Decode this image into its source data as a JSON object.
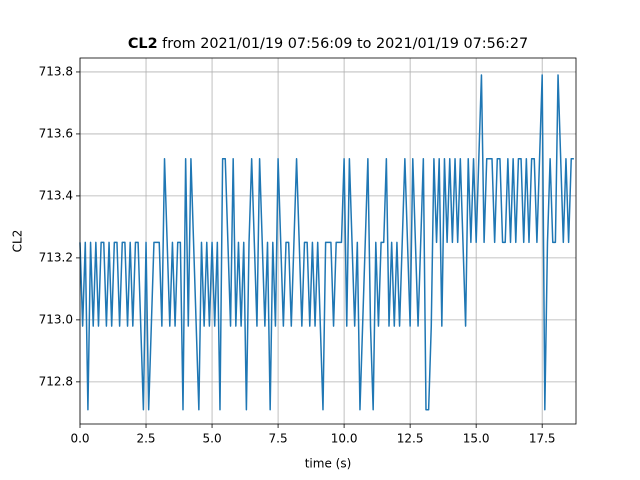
{
  "chart_data": {
    "type": "line",
    "title": {
      "bold": "CL2",
      "text": "from 2021/01/19 07:56:09 to 2021/01/19 07:56:27"
    },
    "xlabel": "time (s)",
    "ylabel": "CL2",
    "color": "#1f77b4",
    "grid": true,
    "xlim": [
      0,
      18.78
    ],
    "ylim": [
      712.664,
      713.845
    ],
    "xticks": [
      {
        "value": 0,
        "label": "0.0"
      },
      2.5,
      {
        "value": 5,
        "label": "5.0"
      },
      7.5,
      {
        "value": 10,
        "label": "10.0"
      },
      12.5,
      {
        "value": 15,
        "label": "15.0"
      },
      17.5
    ],
    "yticks": [
      712.8,
      {
        "value": 713,
        "label": "713.0"
      },
      713.2,
      713.4,
      713.6,
      713.8
    ],
    "x": [
      0.0,
      0.1,
      0.2,
      0.3,
      0.4,
      0.5,
      0.6,
      0.7,
      0.8,
      0.9,
      1.0,
      1.1,
      1.2,
      1.3,
      1.4,
      1.5,
      1.6,
      1.7,
      1.8,
      1.9,
      2.0,
      2.1,
      2.2,
      2.3,
      2.4,
      2.5,
      2.6,
      2.7,
      2.8,
      2.9,
      3.0,
      3.1,
      3.2,
      3.3,
      3.4,
      3.5,
      3.6,
      3.7,
      3.8,
      3.9,
      4.0,
      4.1,
      4.2,
      4.3,
      4.4,
      4.5,
      4.6,
      4.7,
      4.8,
      4.9,
      5.0,
      5.1,
      5.2,
      5.3,
      5.4,
      5.5,
      5.6,
      5.7,
      5.8,
      5.9,
      6.0,
      6.1,
      6.2,
      6.3,
      6.4,
      6.5,
      6.6,
      6.7,
      6.8,
      6.9,
      7.0,
      7.1,
      7.2,
      7.3,
      7.4,
      7.5,
      7.6,
      7.7,
      7.8,
      7.9,
      8.0,
      8.1,
      8.2,
      8.3,
      8.4,
      8.5,
      8.6,
      8.7,
      8.8,
      8.9,
      9.0,
      9.1,
      9.2,
      9.3,
      9.4,
      9.5,
      9.6,
      9.7,
      9.8,
      9.9,
      10.0,
      10.1,
      10.2,
      10.3,
      10.4,
      10.5,
      10.6,
      10.7,
      10.8,
      10.9,
      11.0,
      11.1,
      11.2,
      11.3,
      11.4,
      11.5,
      11.6,
      11.7,
      11.8,
      11.9,
      12.0,
      12.1,
      12.2,
      12.3,
      12.4,
      12.5,
      12.6,
      12.7,
      12.8,
      12.9,
      13.0,
      13.1,
      13.2,
      13.3,
      13.4,
      13.5,
      13.6,
      13.7,
      13.8,
      13.9,
      14.0,
      14.1,
      14.2,
      14.3,
      14.4,
      14.5,
      14.6,
      14.7,
      14.8,
      14.9,
      15.0,
      15.1,
      15.2,
      15.3,
      15.4,
      15.5,
      15.6,
      15.7,
      15.8,
      15.9,
      16.0,
      16.1,
      16.2,
      16.3,
      16.4,
      16.5,
      16.6,
      16.7,
      16.8,
      16.9,
      17.0,
      17.1,
      17.2,
      17.3,
      17.4,
      17.5,
      17.6,
      17.7,
      17.8,
      17.9,
      18.0,
      18.1,
      18.2,
      18.3,
      18.4,
      18.5,
      18.6,
      18.7
    ],
    "values": [
      713.25,
      712.98,
      713.25,
      712.71,
      713.25,
      712.98,
      713.25,
      712.98,
      713.25,
      713.25,
      712.98,
      713.25,
      712.98,
      713.25,
      713.25,
      712.98,
      713.25,
      713.25,
      712.98,
      713.25,
      712.98,
      713.25,
      713.25,
      712.98,
      712.71,
      713.25,
      712.71,
      712.98,
      713.25,
      713.25,
      713.25,
      712.98,
      713.52,
      713.25,
      712.98,
      713.25,
      712.98,
      713.25,
      713.25,
      712.71,
      713.52,
      712.98,
      713.52,
      713.25,
      712.98,
      712.71,
      713.25,
      712.98,
      713.25,
      712.98,
      713.25,
      712.98,
      713.25,
      712.71,
      713.52,
      713.52,
      713.25,
      712.98,
      713.52,
      712.98,
      713.25,
      712.98,
      713.25,
      712.71,
      713.25,
      713.52,
      713.25,
      712.98,
      713.52,
      713.25,
      712.98,
      713.25,
      712.71,
      713.25,
      712.98,
      713.52,
      713.25,
      712.98,
      713.25,
      713.25,
      712.98,
      713.25,
      713.52,
      713.25,
      712.98,
      713.25,
      713.25,
      712.98,
      713.25,
      712.98,
      713.25,
      712.98,
      712.71,
      713.25,
      713.25,
      713.25,
      712.98,
      713.25,
      713.25,
      713.25,
      713.52,
      712.98,
      713.52,
      713.25,
      712.98,
      713.25,
      712.71,
      712.98,
      713.25,
      713.52,
      712.98,
      712.71,
      713.25,
      712.98,
      713.25,
      713.25,
      713.52,
      712.98,
      713.25,
      712.98,
      713.25,
      712.98,
      713.25,
      713.52,
      713.25,
      712.98,
      713.52,
      713.25,
      712.98,
      713.25,
      713.52,
      712.71,
      712.71,
      712.98,
      713.52,
      713.25,
      713.52,
      712.98,
      713.52,
      713.25,
      713.52,
      713.25,
      713.52,
      713.25,
      713.52,
      713.25,
      712.98,
      713.52,
      713.25,
      713.52,
      713.25,
      713.52,
      713.79,
      713.25,
      713.52,
      713.52,
      713.52,
      713.25,
      713.52,
      713.52,
      713.25,
      713.25,
      713.52,
      713.25,
      713.52,
      713.25,
      713.52,
      713.52,
      713.25,
      713.52,
      713.25,
      713.52,
      713.52,
      713.25,
      713.52,
      713.79,
      712.71,
      713.25,
      713.52,
      713.25,
      713.25,
      713.79,
      713.52,
      713.25,
      713.52,
      713.25,
      713.52,
      713.52
    ]
  }
}
